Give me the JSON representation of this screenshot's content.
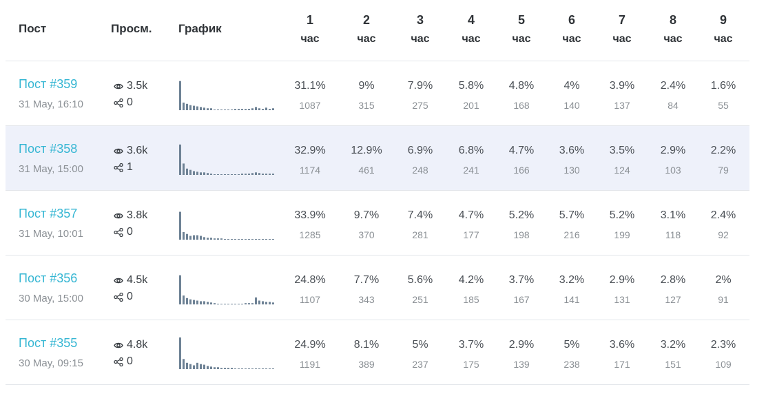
{
  "header": {
    "post": "Пост",
    "views": "Просм.",
    "chart": "График",
    "hour_unit": "час",
    "hours": [
      "1",
      "2",
      "3",
      "4",
      "5",
      "6",
      "7",
      "8",
      "9"
    ]
  },
  "rows": [
    {
      "title": "Пост #359",
      "date": "31 May, 16:10",
      "views": "3.5k",
      "shares": "0",
      "highlight": false,
      "percents": [
        "31.1%",
        "9%",
        "7.9%",
        "5.8%",
        "4.8%",
        "4%",
        "3.9%",
        "2.4%",
        "1.6%"
      ],
      "counts": [
        "1087",
        "315",
        "275",
        "201",
        "168",
        "140",
        "137",
        "84",
        "55"
      ],
      "spark": [
        46,
        12,
        10,
        8,
        7,
        6,
        5,
        4,
        3,
        3,
        1,
        1,
        1,
        1,
        1,
        1,
        2,
        2,
        2,
        2,
        2,
        3,
        5,
        3,
        2,
        4,
        2,
        3
      ]
    },
    {
      "title": "Пост #358",
      "date": "31 May, 15:00",
      "views": "3.6k",
      "shares": "1",
      "highlight": true,
      "percents": [
        "32.9%",
        "12.9%",
        "6.9%",
        "6.8%",
        "4.7%",
        "3.6%",
        "3.5%",
        "2.9%",
        "2.2%"
      ],
      "counts": [
        "1174",
        "461",
        "248",
        "241",
        "166",
        "130",
        "124",
        "103",
        "79"
      ],
      "spark": [
        48,
        18,
        10,
        8,
        6,
        5,
        4,
        4,
        3,
        2,
        1,
        1,
        1,
        1,
        1,
        1,
        1,
        1,
        2,
        2,
        2,
        3,
        4,
        3,
        2,
        2,
        2,
        2
      ]
    },
    {
      "title": "Пост #357",
      "date": "31 May, 10:01",
      "views": "3.8k",
      "shares": "0",
      "highlight": false,
      "percents": [
        "33.9%",
        "9.7%",
        "7.4%",
        "4.7%",
        "5.2%",
        "5.7%",
        "5.2%",
        "3.1%",
        "2.4%"
      ],
      "counts": [
        "1285",
        "370",
        "281",
        "177",
        "198",
        "216",
        "199",
        "118",
        "92"
      ],
      "spark": [
        44,
        12,
        9,
        6,
        7,
        7,
        6,
        4,
        3,
        3,
        2,
        2,
        2,
        1,
        1,
        1,
        1,
        1,
        1,
        1,
        1,
        1,
        1,
        1,
        1,
        1,
        1,
        1
      ]
    },
    {
      "title": "Пост #356",
      "date": "30 May, 15:00",
      "views": "4.5k",
      "shares": "0",
      "highlight": false,
      "percents": [
        "24.8%",
        "7.7%",
        "5.6%",
        "4.2%",
        "3.7%",
        "3.2%",
        "2.9%",
        "2.8%",
        "2%"
      ],
      "counts": [
        "1107",
        "343",
        "251",
        "185",
        "167",
        "141",
        "131",
        "127",
        "91"
      ],
      "spark": [
        46,
        14,
        10,
        8,
        7,
        6,
        5,
        5,
        4,
        3,
        2,
        1,
        1,
        1,
        1,
        1,
        1,
        1,
        1,
        2,
        2,
        2,
        11,
        6,
        5,
        4,
        4,
        3
      ]
    },
    {
      "title": "Пост #355",
      "date": "30 May, 09:15",
      "views": "4.8k",
      "shares": "0",
      "highlight": false,
      "percents": [
        "24.9%",
        "8.1%",
        "5%",
        "3.7%",
        "2.9%",
        "5%",
        "3.6%",
        "3.2%",
        "2.3%"
      ],
      "counts": [
        "1191",
        "389",
        "237",
        "175",
        "139",
        "238",
        "171",
        "151",
        "109"
      ],
      "spark": [
        50,
        16,
        10,
        8,
        6,
        10,
        8,
        7,
        5,
        4,
        3,
        3,
        2,
        2,
        2,
        2,
        1,
        1,
        1,
        1,
        1,
        1,
        1,
        1,
        1,
        1,
        1,
        1
      ]
    }
  ],
  "colors": {
    "link": "#35b6d3",
    "bar": "#6e8295",
    "highlight": "#eef1fa"
  },
  "icons": {
    "views": "eye-icon",
    "shares": "share-icon"
  }
}
